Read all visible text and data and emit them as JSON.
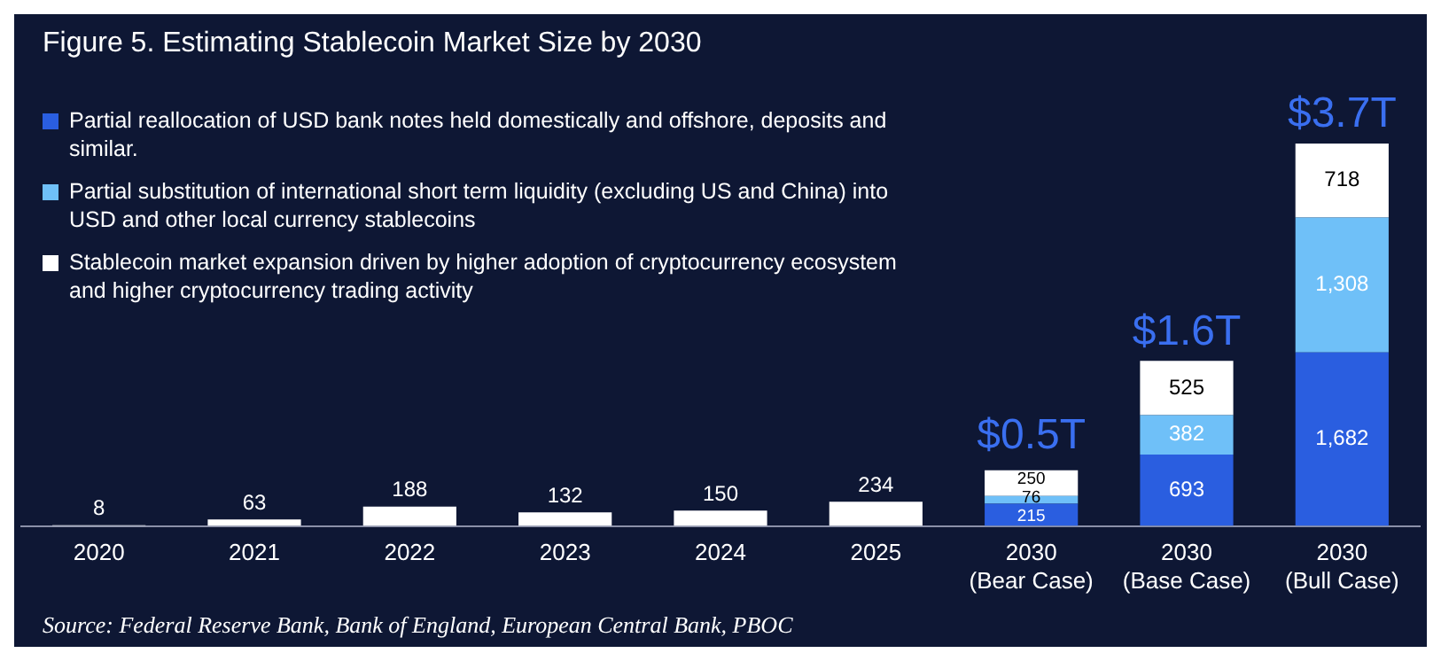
{
  "chart_data": {
    "type": "bar",
    "title": "Figure 5. Estimating Stablecoin Market Size by 2030",
    "categories": [
      "2020",
      "2021",
      "2022",
      "2023",
      "2024",
      "2025",
      "2030 (Bear Case)",
      "2030 (Base Case)",
      "2030 (Bull Case)"
    ],
    "series": [
      {
        "name": "Partial reallocation of USD bank notes held domestically and offshore, deposits and similar.",
        "color": "#2a5ee0",
        "values": [
          null,
          null,
          null,
          null,
          null,
          null,
          215,
          693,
          1682
        ],
        "value_labels": [
          null,
          null,
          null,
          null,
          null,
          null,
          "215",
          "693",
          "1,682"
        ]
      },
      {
        "name": "Partial substitution of international short term liquidity (excluding US and China) into USD and other local currency stablecoins",
        "color": "#6fc0f8",
        "values": [
          null,
          null,
          null,
          null,
          null,
          null,
          76,
          382,
          1308
        ],
        "value_labels": [
          null,
          null,
          null,
          null,
          null,
          null,
          "76",
          "382",
          "1,308"
        ]
      },
      {
        "name": "Stablecoin market expansion driven by higher adoption of cryptocurrency ecosystem and higher cryptocurrency trading activity",
        "color": "#ffffff",
        "values": [
          8,
          63,
          188,
          132,
          150,
          234,
          250,
          525,
          718
        ],
        "value_labels": [
          "8",
          "63",
          "188",
          "132",
          "150",
          "234",
          "250",
          "525",
          "718"
        ]
      }
    ],
    "stacked": true,
    "totals": [
      null,
      null,
      null,
      null,
      null,
      null,
      "$0.5T",
      "$1.6T",
      "$3.7T"
    ],
    "legend": "top left",
    "tick_labels": "x",
    "grid": false,
    "annotations": [
      "Source: Federal Reserve Bank, Bank of England, European Central Bank, PBOC"
    ]
  }
}
